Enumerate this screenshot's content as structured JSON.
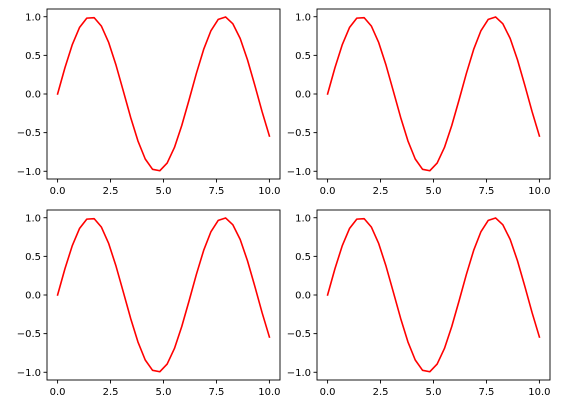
{
  "colors": {
    "line": "#ff0000",
    "axes": "#000000",
    "background": "#ffffff"
  },
  "chart_data": [
    {
      "type": "line",
      "title": "",
      "xlabel": "",
      "ylabel": "",
      "xlim": [
        -0.5,
        10.5
      ],
      "ylim": [
        -1.1,
        1.1
      ],
      "xticks": [
        0.0,
        2.5,
        5.0,
        7.5,
        10.0
      ],
      "xtick_labels": [
        "0.0",
        "2.5",
        "5.0",
        "7.5",
        "10.0"
      ],
      "yticks": [
        -1.0,
        -0.5,
        0.0,
        0.5,
        1.0
      ],
      "ytick_labels": [
        "−1.0",
        "−0.5",
        "0.0",
        "0.5",
        "1.0"
      ],
      "grid": false,
      "series": [
        {
          "color": "#ff0000",
          "x": [
            0.0,
            0.345,
            0.69,
            1.034,
            1.379,
            1.724,
            2.069,
            2.414,
            2.759,
            3.103,
            3.448,
            3.793,
            4.138,
            4.483,
            4.828,
            5.172,
            5.517,
            5.862,
            6.207,
            6.552,
            6.897,
            7.241,
            7.586,
            7.931,
            8.276,
            8.621,
            8.966,
            9.31,
            9.655,
            10.0
          ],
          "y": [
            0.0,
            0.338,
            0.636,
            0.86,
            0.982,
            0.988,
            0.878,
            0.665,
            0.373,
            0.038,
            -0.302,
            -0.607,
            -0.841,
            -0.975,
            -0.993,
            -0.894,
            -0.692,
            -0.408,
            -0.076,
            0.266,
            0.578,
            0.82,
            0.966,
            0.997,
            0.908,
            0.718,
            0.442,
            0.114,
            -0.229,
            -0.544
          ]
        }
      ]
    },
    {
      "type": "line",
      "title": "",
      "xlabel": "",
      "ylabel": "",
      "xlim": [
        -0.5,
        10.5
      ],
      "ylim": [
        -1.1,
        1.1
      ],
      "xticks": [
        0.0,
        2.5,
        5.0,
        7.5,
        10.0
      ],
      "xtick_labels": [
        "0.0",
        "2.5",
        "5.0",
        "7.5",
        "10.0"
      ],
      "yticks": [
        -1.0,
        -0.5,
        0.0,
        0.5,
        1.0
      ],
      "ytick_labels": [
        "−1.0",
        "−0.5",
        "0.0",
        "0.5",
        "1.0"
      ],
      "grid": false,
      "series": [
        {
          "color": "#ff0000",
          "x": [
            0.0,
            0.345,
            0.69,
            1.034,
            1.379,
            1.724,
            2.069,
            2.414,
            2.759,
            3.103,
            3.448,
            3.793,
            4.138,
            4.483,
            4.828,
            5.172,
            5.517,
            5.862,
            6.207,
            6.552,
            6.897,
            7.241,
            7.586,
            7.931,
            8.276,
            8.621,
            8.966,
            9.31,
            9.655,
            10.0
          ],
          "y": [
            0.0,
            0.338,
            0.636,
            0.86,
            0.982,
            0.988,
            0.878,
            0.665,
            0.373,
            0.038,
            -0.302,
            -0.607,
            -0.841,
            -0.975,
            -0.993,
            -0.894,
            -0.692,
            -0.408,
            -0.076,
            0.266,
            0.578,
            0.82,
            0.966,
            0.997,
            0.908,
            0.718,
            0.442,
            0.114,
            -0.229,
            -0.544
          ]
        }
      ]
    },
    {
      "type": "line",
      "title": "",
      "xlabel": "",
      "ylabel": "",
      "xlim": [
        -0.5,
        10.5
      ],
      "ylim": [
        -1.1,
        1.1
      ],
      "xticks": [
        0.0,
        2.5,
        5.0,
        7.5,
        10.0
      ],
      "xtick_labels": [
        "0.0",
        "2.5",
        "5.0",
        "7.5",
        "10.0"
      ],
      "yticks": [
        -1.0,
        -0.5,
        0.0,
        0.5,
        1.0
      ],
      "ytick_labels": [
        "−1.0",
        "−0.5",
        "0.0",
        "0.5",
        "1.0"
      ],
      "grid": false,
      "series": [
        {
          "color": "#ff0000",
          "x": [
            0.0,
            0.345,
            0.69,
            1.034,
            1.379,
            1.724,
            2.069,
            2.414,
            2.759,
            3.103,
            3.448,
            3.793,
            4.138,
            4.483,
            4.828,
            5.172,
            5.517,
            5.862,
            6.207,
            6.552,
            6.897,
            7.241,
            7.586,
            7.931,
            8.276,
            8.621,
            8.966,
            9.31,
            9.655,
            10.0
          ],
          "y": [
            0.0,
            0.338,
            0.636,
            0.86,
            0.982,
            0.988,
            0.878,
            0.665,
            0.373,
            0.038,
            -0.302,
            -0.607,
            -0.841,
            -0.975,
            -0.993,
            -0.894,
            -0.692,
            -0.408,
            -0.076,
            0.266,
            0.578,
            0.82,
            0.966,
            0.997,
            0.908,
            0.718,
            0.442,
            0.114,
            -0.229,
            -0.544
          ]
        }
      ]
    },
    {
      "type": "line",
      "title": "",
      "xlabel": "",
      "ylabel": "",
      "xlim": [
        -0.5,
        10.5
      ],
      "ylim": [
        -1.1,
        1.1
      ],
      "xticks": [
        0.0,
        2.5,
        5.0,
        7.5,
        10.0
      ],
      "xtick_labels": [
        "0.0",
        "2.5",
        "5.0",
        "7.5",
        "10.0"
      ],
      "yticks": [
        -1.0,
        -0.5,
        0.0,
        0.5,
        1.0
      ],
      "ytick_labels": [
        "−1.0",
        "−0.5",
        "0.0",
        "0.5",
        "1.0"
      ],
      "grid": false,
      "series": [
        {
          "color": "#ff0000",
          "x": [
            0.0,
            0.345,
            0.69,
            1.034,
            1.379,
            1.724,
            2.069,
            2.414,
            2.759,
            3.103,
            3.448,
            3.793,
            4.138,
            4.483,
            4.828,
            5.172,
            5.517,
            5.862,
            6.207,
            6.552,
            6.897,
            7.241,
            7.586,
            7.931,
            8.276,
            8.621,
            8.966,
            9.31,
            9.655,
            10.0
          ],
          "y": [
            0.0,
            0.338,
            0.636,
            0.86,
            0.982,
            0.988,
            0.878,
            0.665,
            0.373,
            0.038,
            -0.302,
            -0.607,
            -0.841,
            -0.975,
            -0.993,
            -0.894,
            -0.692,
            -0.408,
            -0.076,
            0.266,
            0.578,
            0.82,
            0.966,
            0.997,
            0.908,
            0.718,
            0.442,
            0.114,
            -0.229,
            -0.544
          ]
        }
      ]
    }
  ]
}
